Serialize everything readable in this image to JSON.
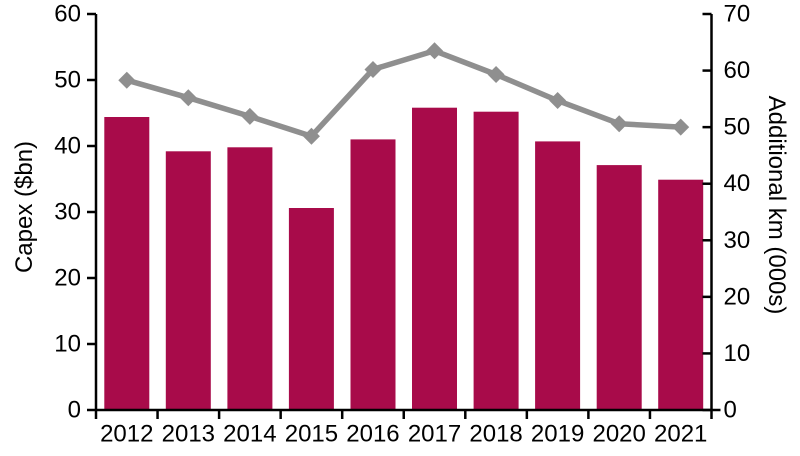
{
  "chart_data": {
    "type": "combo",
    "categories": [
      "2012",
      "2013",
      "2014",
      "2015",
      "2016",
      "2017",
      "2018",
      "2019",
      "2020",
      "2021"
    ],
    "series": [
      {
        "name": "Capex ($bn)",
        "type": "bar",
        "axis": "left",
        "color": "#A80B4A",
        "values": [
          44.4,
          39.2,
          39.8,
          30.6,
          41.0,
          45.8,
          45.2,
          40.7,
          37.1,
          34.9
        ]
      },
      {
        "name": "Additional km (000s)",
        "type": "line",
        "axis": "right",
        "color": "#8F8F8F",
        "marker": "diamond",
        "values": [
          58.3,
          55.2,
          51.9,
          48.4,
          60.2,
          63.5,
          59.3,
          54.7,
          50.6,
          50.0
        ]
      }
    ],
    "axes": {
      "left": {
        "label": "Capex ($bn)",
        "min": 0,
        "max": 60,
        "step": 10,
        "ticks": [
          0,
          10,
          20,
          30,
          40,
          50,
          60
        ]
      },
      "right": {
        "label": "Additional km (000s)",
        "min": 0,
        "max": 70,
        "step": 10,
        "ticks": [
          0,
          10,
          20,
          30,
          40,
          50,
          60,
          70
        ]
      }
    },
    "grid": false,
    "legend": "none",
    "title": "",
    "axis_color": "#000000"
  }
}
